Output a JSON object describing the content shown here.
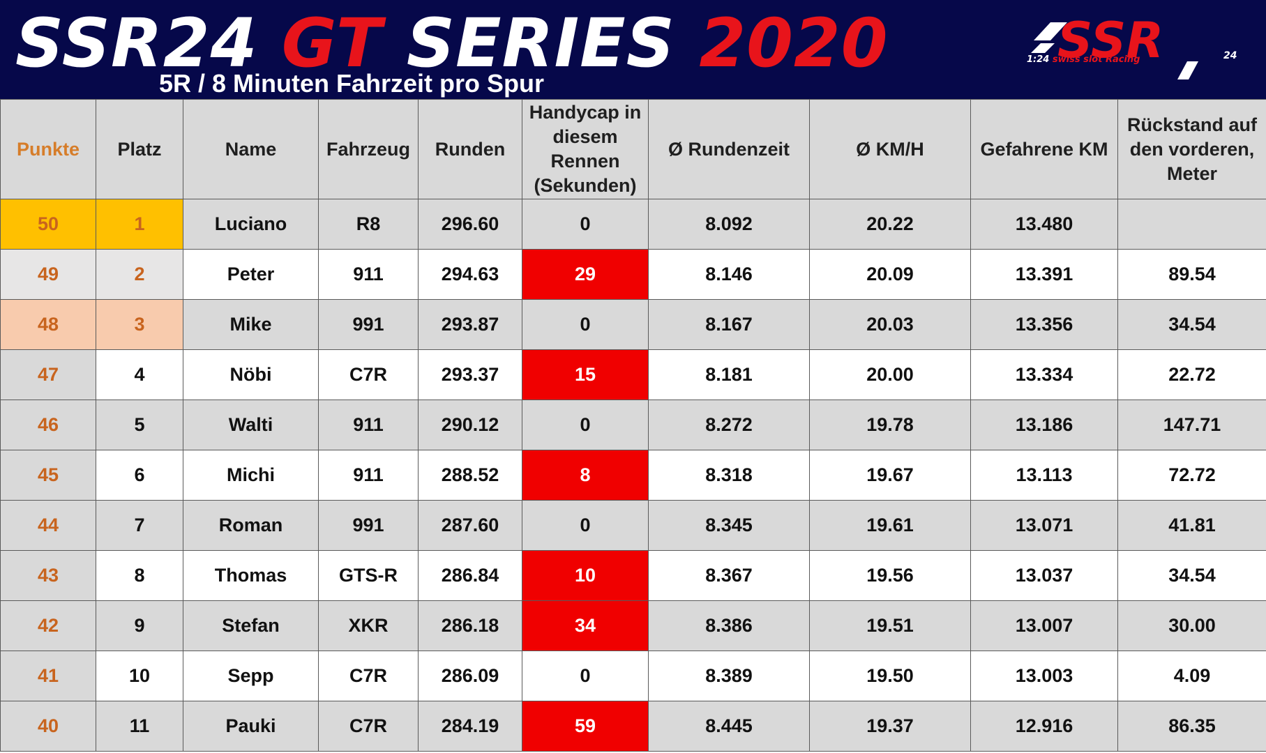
{
  "header": {
    "title_part1": "SSR24 ",
    "title_part2": "GT ",
    "title_part3": "SERIES ",
    "title_part4": "2020",
    "subtitle": "5R / 8 Minuten Fahrzeit pro Spur",
    "logo_main": "SSR",
    "logo_prefix": "1:24 ",
    "logo_mid": "swiss slot ",
    "logo_end": "Racing",
    "logo_suffix": "24"
  },
  "columns": {
    "punkte": "Punkte",
    "platz": "Platz",
    "name": "Name",
    "fahrzeug": "Fahrzeug",
    "runden": "Runden",
    "handycap_l1": "Handycap in",
    "handycap_l2": "diesem",
    "handycap_l3": "Rennen",
    "handycap_l4": "(Sekunden)",
    "rundenzeit": "Ø Rundenzeit",
    "kmh": "Ø KM/H",
    "km": "Gefahrene KM",
    "rueck_l1": "Rückstand auf",
    "rueck_l2": "den vorderen,",
    "rueck_l3": "Meter"
  },
  "colors": {
    "header_bg": "#06084a",
    "brand_red": "#e8141b",
    "handicap_red": "#f00000",
    "gold": "#ffc000",
    "silver": "#e7e6e6",
    "bronze": "#f8cbad",
    "points_text": "#c8641e"
  },
  "rows": [
    {
      "punkte": "50",
      "platz": "1",
      "name": "Luciano",
      "fahrzeug": "R8",
      "runden": "296.60",
      "handycap": "0",
      "rundenzeit": "8.092",
      "kmh": "20.22",
      "km": "13.480",
      "rueckstand": ""
    },
    {
      "punkte": "49",
      "platz": "2",
      "name": "Peter",
      "fahrzeug": "911",
      "runden": "294.63",
      "handycap": "29",
      "rundenzeit": "8.146",
      "kmh": "20.09",
      "km": "13.391",
      "rueckstand": "89.54"
    },
    {
      "punkte": "48",
      "platz": "3",
      "name": "Mike",
      "fahrzeug": "991",
      "runden": "293.87",
      "handycap": "0",
      "rundenzeit": "8.167",
      "kmh": "20.03",
      "km": "13.356",
      "rueckstand": "34.54"
    },
    {
      "punkte": "47",
      "platz": "4",
      "name": "Nöbi",
      "fahrzeug": "C7R",
      "runden": "293.37",
      "handycap": "15",
      "rundenzeit": "8.181",
      "kmh": "20.00",
      "km": "13.334",
      "rueckstand": "22.72"
    },
    {
      "punkte": "46",
      "platz": "5",
      "name": "Walti",
      "fahrzeug": "911",
      "runden": "290.12",
      "handycap": "0",
      "rundenzeit": "8.272",
      "kmh": "19.78",
      "km": "13.186",
      "rueckstand": "147.71"
    },
    {
      "punkte": "45",
      "platz": "6",
      "name": "Michi",
      "fahrzeug": "911",
      "runden": "288.52",
      "handycap": "8",
      "rundenzeit": "8.318",
      "kmh": "19.67",
      "km": "13.113",
      "rueckstand": "72.72"
    },
    {
      "punkte": "44",
      "platz": "7",
      "name": "Roman",
      "fahrzeug": "991",
      "runden": "287.60",
      "handycap": "0",
      "rundenzeit": "8.345",
      "kmh": "19.61",
      "km": "13.071",
      "rueckstand": "41.81"
    },
    {
      "punkte": "43",
      "platz": "8",
      "name": "Thomas",
      "fahrzeug": "GTS-R",
      "runden": "286.84",
      "handycap": "10",
      "rundenzeit": "8.367",
      "kmh": "19.56",
      "km": "13.037",
      "rueckstand": "34.54"
    },
    {
      "punkte": "42",
      "platz": "9",
      "name": "Stefan",
      "fahrzeug": "XKR",
      "runden": "286.18",
      "handycap": "34",
      "rundenzeit": "8.386",
      "kmh": "19.51",
      "km": "13.007",
      "rueckstand": "30.00"
    },
    {
      "punkte": "41",
      "platz": "10",
      "name": "Sepp",
      "fahrzeug": "C7R",
      "runden": "286.09",
      "handycap": "0",
      "rundenzeit": "8.389",
      "kmh": "19.50",
      "km": "13.003",
      "rueckstand": "4.09"
    },
    {
      "punkte": "40",
      "platz": "11",
      "name": "Pauki",
      "fahrzeug": "C7R",
      "runden": "284.19",
      "handycap": "59",
      "rundenzeit": "8.445",
      "kmh": "19.37",
      "km": "12.916",
      "rueckstand": "86.35"
    }
  ]
}
